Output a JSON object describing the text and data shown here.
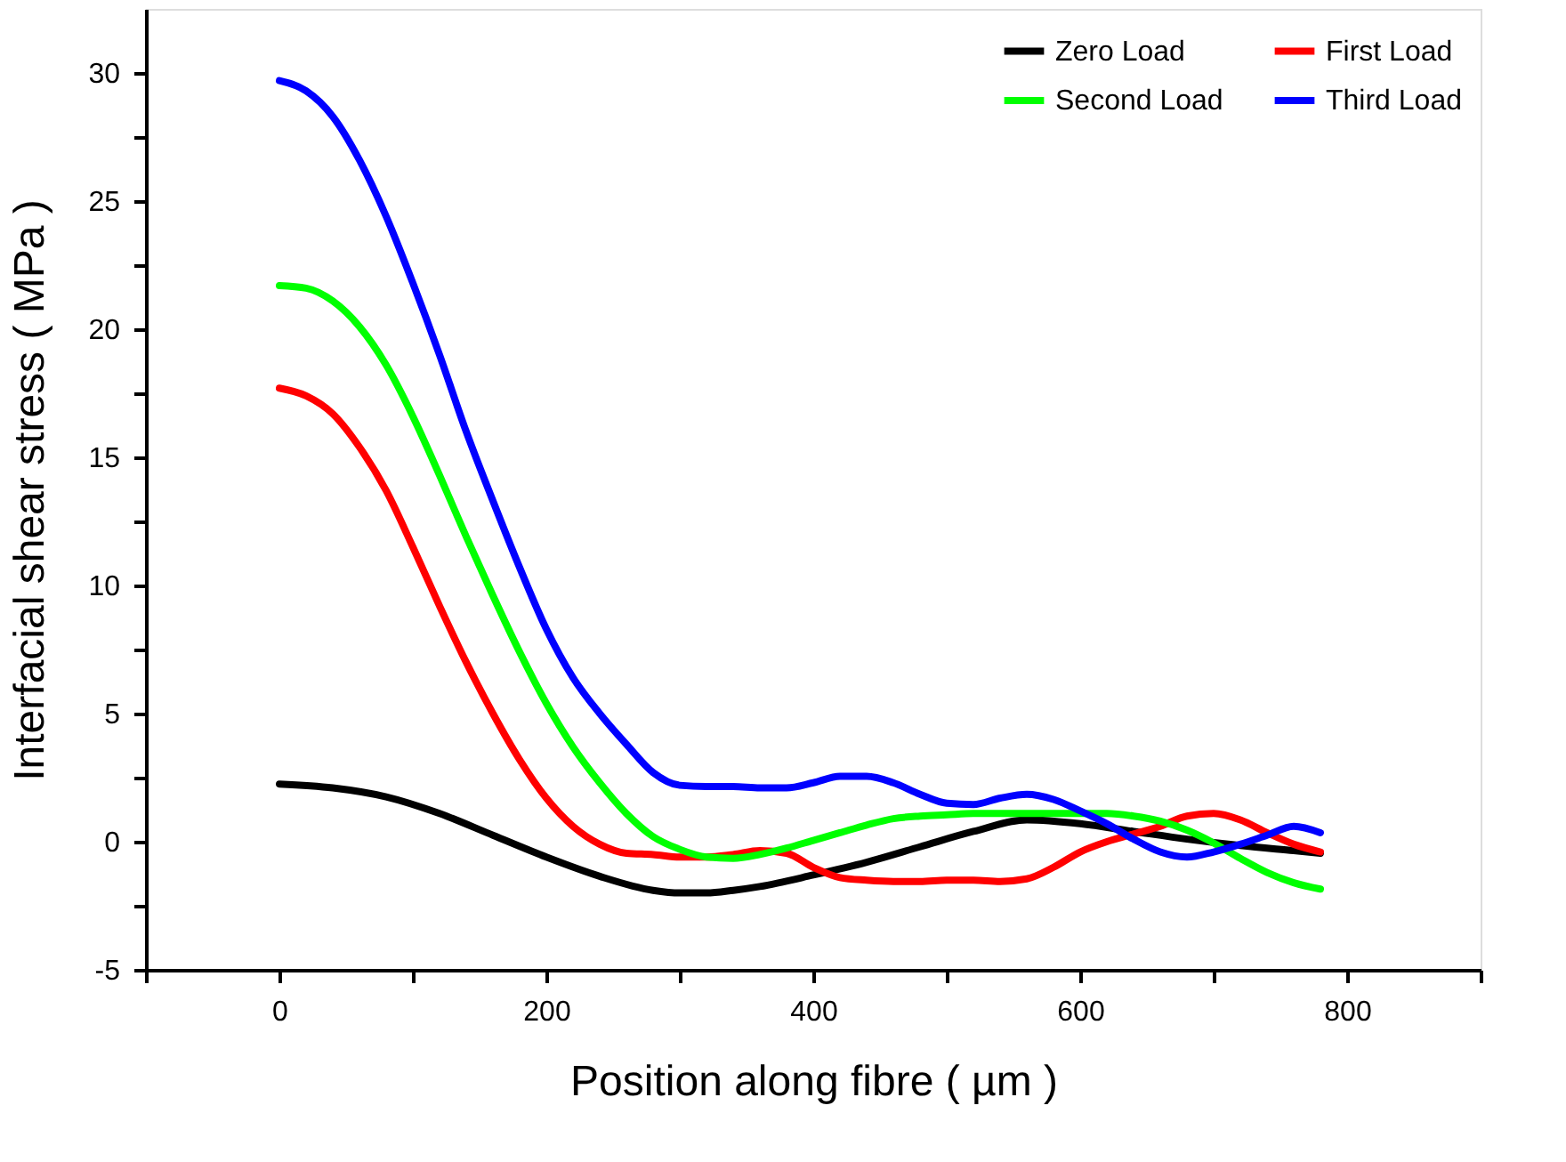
{
  "chart_data": {
    "type": "line",
    "xlabel": "Position along fibre ( µm )",
    "ylabel": "Interfacial shear stress ( MPa )",
    "x": [
      0,
      20,
      40,
      60,
      80,
      100,
      120,
      140,
      160,
      180,
      200,
      220,
      240,
      260,
      280,
      300,
      320,
      340,
      360,
      380,
      400,
      420,
      440,
      460,
      480,
      500,
      520,
      540,
      560,
      580,
      600,
      620,
      640,
      660,
      680,
      700,
      720,
      740,
      760,
      780
    ],
    "series": [
      {
        "name": "Zero Load",
        "color": "#000000",
        "x": [
          0,
          40,
          80,
          120,
          160,
          200,
          240,
          280,
          300,
          320,
          340,
          360,
          400,
          440,
          480,
          520,
          560,
          600,
          640,
          680,
          720,
          760,
          780
        ],
        "values": [
          2.25,
          2.1,
          1.75,
          1.1,
          0.25,
          -0.6,
          -1.35,
          -1.9,
          -2.0,
          -2.0,
          -1.9,
          -1.75,
          -1.3,
          -0.8,
          -0.2,
          0.4,
          0.85,
          0.7,
          0.4,
          0.1,
          -0.15,
          -0.35,
          -0.45
        ]
      },
      {
        "name": "First Load",
        "color": "#ff0000",
        "values": [
          17.7,
          17.4,
          16.7,
          15.4,
          13.7,
          11.5,
          9.2,
          7.0,
          5.0,
          3.2,
          1.7,
          0.6,
          -0.1,
          -0.45,
          -0.5,
          -0.6,
          -0.6,
          -0.5,
          -0.35,
          -0.45,
          -1.0,
          -1.4,
          -1.5,
          -1.55,
          -1.55,
          -1.5,
          -1.5,
          -1.55,
          -1.45,
          -1.0,
          -0.4,
          0.0,
          0.3,
          0.6,
          1.0,
          1.1,
          0.85,
          0.35,
          -0.1,
          -0.4
        ]
      },
      {
        "name": "Second Load",
        "color": "#00ff00",
        "values": [
          21.7,
          21.6,
          21.1,
          20.1,
          18.6,
          16.6,
          14.3,
          11.9,
          9.6,
          7.4,
          5.4,
          3.7,
          2.3,
          1.1,
          0.2,
          -0.3,
          -0.6,
          -0.65,
          -0.5,
          -0.25,
          0.05,
          0.35,
          0.65,
          0.9,
          1.0,
          1.05,
          1.1,
          1.1,
          1.1,
          1.1,
          1.1,
          1.1,
          1.0,
          0.8,
          0.45,
          -0.05,
          -0.65,
          -1.2,
          -1.6,
          -1.85
        ]
      },
      {
        "name": "Third Load",
        "color": "#0000ff",
        "values": [
          29.7,
          29.3,
          28.3,
          26.6,
          24.4,
          21.8,
          19.0,
          16.0,
          13.3,
          10.7,
          8.3,
          6.4,
          5.0,
          3.8,
          2.7,
          2.2,
          2.15,
          2.15,
          2.1,
          2.1,
          2.3,
          2.55,
          2.55,
          2.3,
          1.85,
          1.5,
          1.45,
          1.7,
          1.85,
          1.65,
          1.2,
          0.7,
          0.1,
          -0.4,
          -0.6,
          -0.4,
          -0.1,
          0.25,
          0.6,
          0.35
        ]
      }
    ],
    "xlim": [
      -100,
      900
    ],
    "xticks": [
      {
        "value": -100,
        "label": null
      },
      0,
      {
        "value": 100,
        "label": null
      },
      200,
      {
        "value": 300,
        "label": null
      },
      400,
      {
        "value": 500,
        "label": null
      },
      600,
      {
        "value": 700,
        "label": null
      },
      800,
      {
        "value": 900,
        "label": null
      }
    ],
    "ylim": [
      -5,
      32.5
    ],
    "yticks": [
      -5,
      {
        "value": -2.5,
        "label": null
      },
      0,
      {
        "value": 2.5,
        "label": null
      },
      5,
      {
        "value": 7.5,
        "label": null
      },
      10,
      {
        "value": 12.5,
        "label": null
      },
      15,
      {
        "value": 17.5,
        "label": null
      },
      20,
      {
        "value": 22.5,
        "label": null
      },
      25,
      {
        "value": 27.5,
        "label": null
      },
      30
    ],
    "grid": false,
    "legend": "top right",
    "marker": "none",
    "line_style": "solid"
  }
}
